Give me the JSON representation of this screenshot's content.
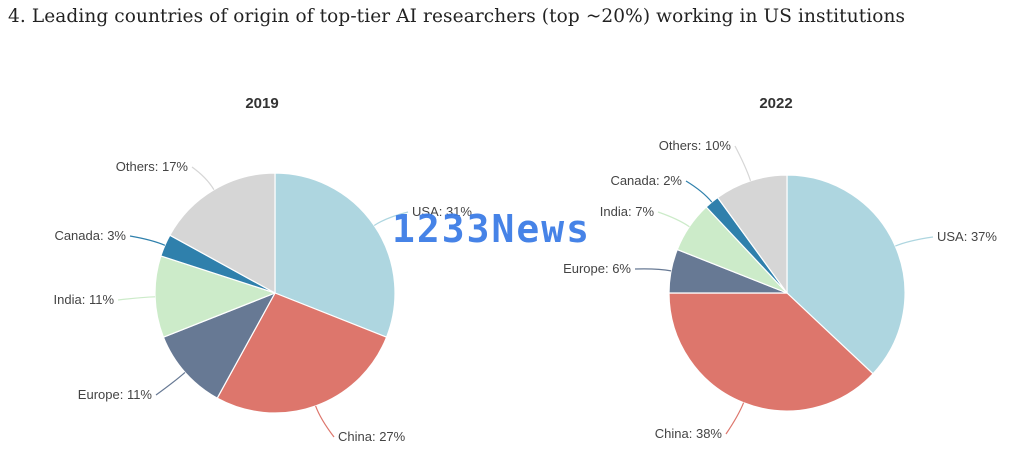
{
  "page": {
    "title": "4. Leading countries of origin of top-tier AI researchers (top ~20%) working in US institutions"
  },
  "watermark": {
    "text": "1233News"
  },
  "chart_data": [
    {
      "type": "pie",
      "title": "2019",
      "unit": "%",
      "slices": [
        {
          "label": "USA",
          "value": 31,
          "color": "#aed6e0"
        },
        {
          "label": "China",
          "value": 27,
          "color": "#dd766c"
        },
        {
          "label": "Europe",
          "value": 11,
          "color": "#677994"
        },
        {
          "label": "India",
          "value": 11,
          "color": "#ccebc9"
        },
        {
          "label": "Canada",
          "value": 3,
          "color": "#2f80ac"
        },
        {
          "label": "Others",
          "value": 17,
          "color": "#d6d6d6"
        }
      ]
    },
    {
      "type": "pie",
      "title": "2022",
      "unit": "%",
      "slices": [
        {
          "label": "USA",
          "value": 37,
          "color": "#aed6e0"
        },
        {
          "label": "China",
          "value": 38,
          "color": "#dd766c"
        },
        {
          "label": "Europe",
          "value": 6,
          "color": "#677994"
        },
        {
          "label": "India",
          "value": 7,
          "color": "#ccebc9"
        },
        {
          "label": "Canada",
          "value": 2,
          "color": "#2f80ac"
        },
        {
          "label": "Others",
          "value": 10,
          "color": "#d6d6d6"
        }
      ]
    }
  ]
}
